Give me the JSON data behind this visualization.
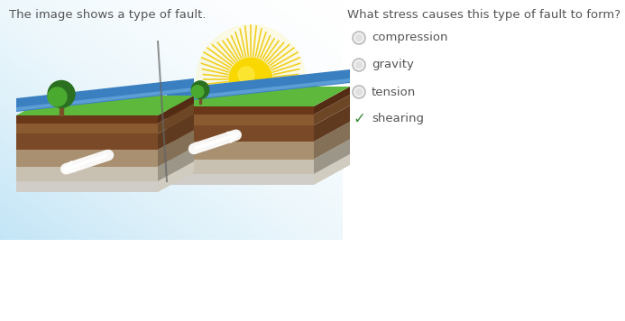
{
  "bg_color": "#ffffff",
  "title_left": "The image shows a type of fault.",
  "title_right": "What stress causes this type of fault to form?",
  "options": [
    "compression",
    "gravity",
    "tension",
    "shearing"
  ],
  "correct_index": 3,
  "title_fontsize": 9.5,
  "option_fontsize": 9.5,
  "radio_color": "#bbbbbb",
  "check_color": "#3a8a3a",
  "text_color": "#555555",
  "sky_blue": "#b8dff0",
  "grass_top": "#5db83c",
  "grass_mid": "#4aaa30",
  "water_main": "#3a7fc0",
  "water_light": "#6aaade",
  "dirt_dark": "#5a3520",
  "dirt_mid": "#7a4a28",
  "dirt_light": "#9a6840",
  "rock_top": "#c8b8a0",
  "rock_bot": "#b0a890",
  "shadow_color": "#d0ccc8",
  "sun_body": "#f8d800",
  "sun_ray": "#f0c800",
  "sun_glow": "#fff5a0",
  "arrow_white": "#ffffff",
  "tree_trunk": "#7a5028",
  "tree_green_dark": "#2a7020",
  "tree_green_light": "#4aaa30",
  "fault_line": "#666666"
}
